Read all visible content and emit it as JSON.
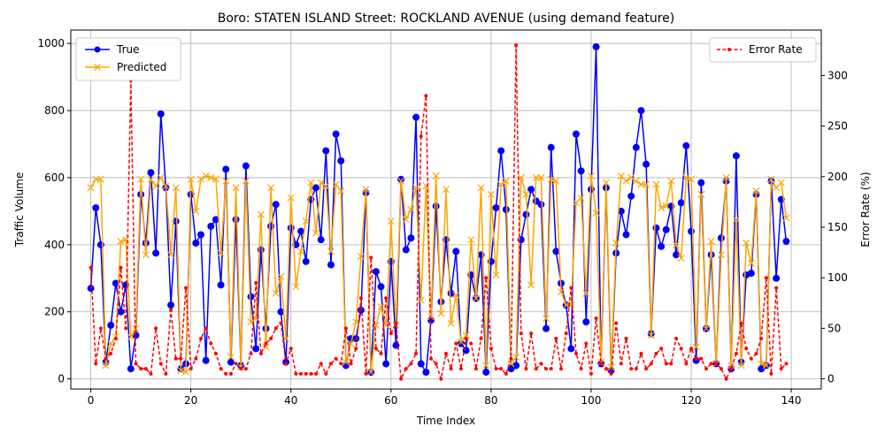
{
  "chart_data": {
    "type": "line",
    "title": "Boro: STATEN ISLAND Street: ROCKLAND AVENUE (using demand feature)",
    "xlabel": "Time Index",
    "ylabel": "Traffic Volume",
    "y2label": "Error Rate (%)",
    "xlim": [
      -4,
      146
    ],
    "ylim": [
      -30,
      1040
    ],
    "y2lim": [
      -10,
      345
    ],
    "x_ticks": [
      0,
      20,
      40,
      60,
      80,
      100,
      120,
      140
    ],
    "y_ticks": [
      0,
      200,
      400,
      600,
      800,
      1000
    ],
    "y2_ticks": [
      0,
      50,
      100,
      150,
      200,
      250,
      300
    ],
    "grid": true,
    "legend_left": "upper-left",
    "legend_right": "upper-right",
    "colors": {
      "true": "#0000ff",
      "predicted": "#ffa500",
      "error": "#ff0000"
    },
    "series": [
      {
        "name": "True",
        "axis": "left",
        "values": [
          270,
          510,
          400,
          50,
          160,
          285,
          200,
          280,
          30,
          130,
          550,
          405,
          615,
          375,
          790,
          570,
          220,
          470,
          30,
          45,
          550,
          405,
          430,
          55,
          455,
          475,
          280,
          625,
          50,
          475,
          40,
          635,
          245,
          90,
          385,
          150,
          455,
          520,
          200,
          50,
          450,
          400,
          440,
          350,
          535,
          570,
          415,
          680,
          340,
          730,
          650,
          40,
          120,
          120,
          205,
          555,
          20,
          320,
          275,
          45,
          350,
          100,
          595,
          385,
          420,
          780,
          45,
          20,
          175,
          515,
          230,
          415,
          255,
          380,
          105,
          85,
          310,
          240,
          370,
          20,
          350,
          510,
          680,
          505,
          30,
          40,
          415,
          490,
          565,
          530,
          520,
          150,
          690,
          380,
          285,
          220,
          90,
          730,
          620,
          170,
          565,
          990,
          45,
          570,
          25,
          375,
          500,
          430,
          545,
          690,
          800,
          640,
          135,
          450,
          395,
          445,
          515,
          370,
          525,
          695,
          440,
          55,
          585,
          150,
          370,
          45,
          420,
          590,
          30,
          665,
          50,
          310,
          315,
          550,
          30,
          40,
          590,
          300,
          535,
          410
        ]
      },
      {
        "name": "Predicted",
        "axis": "left",
        "values": [
          570,
          595,
          595,
          40,
          105,
          125,
          410,
          415,
          125,
          150,
          595,
          370,
          595,
          575,
          600,
          575,
          370,
          570,
          25,
          20,
          595,
          500,
          595,
          605,
          600,
          595,
          375,
          590,
          65,
          570,
          35,
          590,
          170,
          180,
          490,
          95,
          570,
          255,
          305,
          120,
          540,
          275,
          380,
          470,
          585,
          435,
          585,
          575,
          380,
          580,
          560,
          50,
          105,
          170,
          365,
          565,
          20,
          160,
          215,
          160,
          470,
          160,
          590,
          475,
          505,
          570,
          235,
          575,
          185,
          605,
          195,
          565,
          165,
          250,
          110,
          130,
          415,
          240,
          570,
          40,
          550,
          310,
          580,
          590,
          45,
          65,
          600,
          550,
          280,
          600,
          600,
          180,
          595,
          590,
          260,
          220,
          220,
          525,
          540,
          255,
          605,
          495,
          50,
          585,
          35,
          405,
          605,
          590,
          600,
          590,
          580,
          580,
          130,
          580,
          510,
          515,
          590,
          400,
          360,
          600,
          595,
          95,
          550,
          150,
          410,
          45,
          370,
          600,
          40,
          475,
          40,
          405,
          345,
          560,
          45,
          40,
          595,
          570,
          585,
          480
        ]
      },
      {
        "name": "Error Rate",
        "axis": "right",
        "values": [
          110,
          15,
          50,
          20,
          25,
          40,
          110,
          50,
          295,
          15,
          10,
          10,
          5,
          50,
          15,
          5,
          68,
          20,
          20,
          90,
          10,
          20,
          40,
          50,
          35,
          25,
          10,
          5,
          5,
          15,
          10,
          10,
          25,
          95,
          25,
          35,
          40,
          50,
          55,
          15,
          30,
          5,
          5,
          5,
          5,
          5,
          15,
          5,
          15,
          20,
          15,
          50,
          15,
          30,
          80,
          5,
          120,
          30,
          25,
          80,
          45,
          55,
          0,
          10,
          15,
          25,
          240,
          280,
          20,
          15,
          0,
          25,
          10,
          35,
          10,
          40,
          35,
          10,
          40,
          100,
          30,
          10,
          10,
          5,
          20,
          330,
          45,
          10,
          45,
          10,
          15,
          10,
          10,
          40,
          10,
          45,
          90,
          25,
          10,
          35,
          5,
          60,
          15,
          10,
          5,
          55,
          15,
          40,
          10,
          10,
          25,
          10,
          15,
          25,
          30,
          15,
          15,
          40,
          30,
          15,
          30,
          20,
          20,
          10,
          15,
          15,
          10,
          0,
          10,
          25,
          55,
          30,
          20,
          25,
          40,
          100,
          5,
          90,
          10,
          15
        ]
      }
    ]
  }
}
